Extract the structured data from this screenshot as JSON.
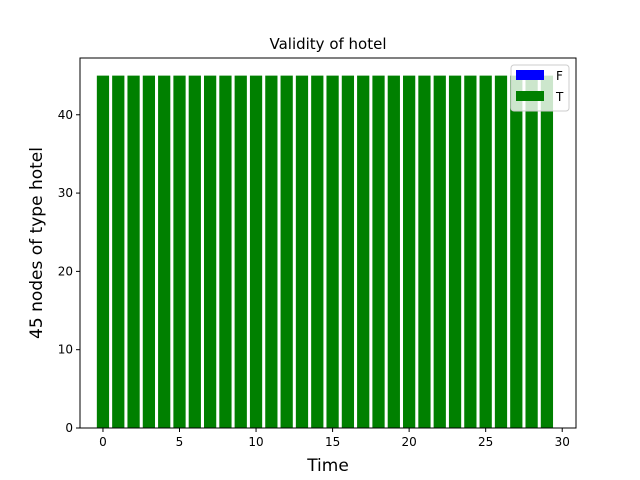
{
  "chart_data": {
    "type": "bar",
    "title": "Validity of hotel",
    "xlabel": "Time",
    "ylabel": "45 nodes  of type hotel",
    "x": [
      0,
      1,
      2,
      3,
      4,
      5,
      6,
      7,
      8,
      9,
      10,
      11,
      12,
      13,
      14,
      15,
      16,
      17,
      18,
      19,
      20,
      21,
      22,
      23,
      24,
      25,
      26,
      27,
      28,
      29
    ],
    "series": [
      {
        "name": "F",
        "color": "#0000ff",
        "values": [
          0,
          0,
          0,
          0,
          0,
          0,
          0,
          0,
          0,
          0,
          0,
          0,
          0,
          0,
          0,
          0,
          0,
          0,
          0,
          0,
          0,
          0,
          0,
          0,
          0,
          0,
          0,
          0,
          0,
          0
        ]
      },
      {
        "name": "T",
        "color": "#008000",
        "values": [
          45,
          45,
          45,
          45,
          45,
          45,
          45,
          45,
          45,
          45,
          45,
          45,
          45,
          45,
          45,
          45,
          45,
          45,
          45,
          45,
          45,
          45,
          45,
          45,
          45,
          45,
          45,
          45,
          45,
          45
        ]
      }
    ],
    "stacked": true,
    "xlim": [
      -1.5,
      30.9
    ],
    "ylim": [
      0,
      47.25
    ],
    "xticks": [
      0,
      5,
      10,
      15,
      20,
      25,
      30
    ],
    "yticks": [
      0,
      10,
      20,
      30,
      40
    ],
    "legend": "top-right",
    "grid": false
  }
}
